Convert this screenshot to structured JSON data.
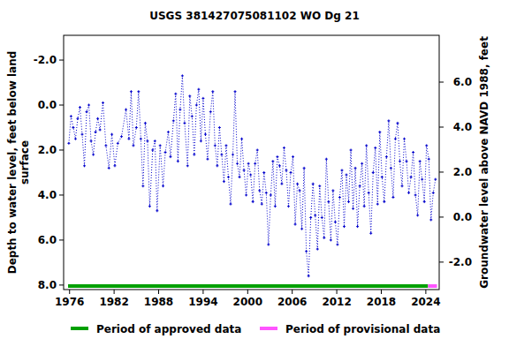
{
  "chart_data": {
    "type": "line",
    "title": "USGS 381427075081102 WO Dg  21",
    "ylabel": "Depth to water level, feet below land\nsurface",
    "y2label": "Groundwater level above NAVD 1988, feet",
    "xlim": [
      1975.2,
      2025.8
    ],
    "xticks": [
      1976,
      1982,
      1988,
      1994,
      2000,
      2006,
      2012,
      2018,
      2024
    ],
    "ylim": [
      8.2,
      -3.1
    ],
    "yticks": [
      {
        "value": -2,
        "label": "-2.0"
      },
      {
        "value": 0,
        "label": "0.0"
      },
      {
        "value": 2,
        "label": "2.0"
      },
      {
        "value": 4,
        "label": "4.0"
      },
      {
        "value": 6,
        "label": "6.0"
      },
      {
        "value": 8,
        "label": "8.0"
      }
    ],
    "y2lim": [
      -3.22,
      8.08
    ],
    "y2ticks": [
      {
        "value": 6,
        "label": "6.0"
      },
      {
        "value": 4,
        "label": "4.0"
      },
      {
        "value": 2,
        "label": "2.0"
      },
      {
        "value": 0,
        "label": "0.0"
      },
      {
        "value": -2,
        "label": "-2.0"
      }
    ],
    "grid": false,
    "series": [
      {
        "name": "Depth to water level",
        "color": "#0000cc",
        "marker": "plus",
        "line_style": "dotted",
        "x": [
          1975.9,
          1976.2,
          1976.5,
          1976.8,
          1977.1,
          1977.4,
          1977.7,
          1978.0,
          1978.3,
          1978.6,
          1978.9,
          1979.2,
          1979.5,
          1979.8,
          1980.1,
          1980.5,
          1980.9,
          1981.3,
          1981.7,
          1982.1,
          1982.5,
          1983.0,
          1983.6,
          1984.0,
          1984.3,
          1984.6,
          1985.0,
          1985.3,
          1985.6,
          1985.9,
          1986.2,
          1986.5,
          1986.8,
          1987.2,
          1987.5,
          1987.8,
          1988.2,
          1988.6,
          1988.9,
          1989.3,
          1989.6,
          1990.0,
          1990.3,
          1990.6,
          1990.9,
          1991.2,
          1991.5,
          1991.9,
          1992.2,
          1992.5,
          1992.8,
          1993.1,
          1993.4,
          1993.7,
          1994.0,
          1994.3,
          1994.6,
          1995.0,
          1995.3,
          1995.6,
          1995.9,
          1996.2,
          1996.5,
          1996.8,
          1997.1,
          1997.4,
          1997.7,
          1998.0,
          1998.3,
          1998.6,
          1998.9,
          1999.2,
          1999.5,
          1999.8,
          2000.1,
          2000.4,
          2000.7,
          2001.0,
          2001.3,
          2001.6,
          2001.9,
          2002.2,
          2002.5,
          2002.8,
          2003.1,
          2003.4,
          2003.7,
          2004.0,
          2004.3,
          2004.6,
          2004.9,
          2005.2,
          2005.5,
          2005.8,
          2006.1,
          2006.4,
          2006.7,
          2007.0,
          2007.3,
          2007.6,
          2007.9,
          2008.2,
          2008.5,
          2008.8,
          2009.1,
          2009.4,
          2009.7,
          2010.0,
          2010.3,
          2010.6,
          2010.9,
          2011.2,
          2011.5,
          2011.8,
          2012.1,
          2012.4,
          2012.7,
          2013.0,
          2013.3,
          2013.6,
          2013.9,
          2014.2,
          2014.5,
          2014.8,
          2015.1,
          2015.4,
          2015.7,
          2016.0,
          2016.3,
          2016.6,
          2016.9,
          2017.2,
          2017.5,
          2017.8,
          2018.1,
          2018.4,
          2018.7,
          2019.0,
          2019.3,
          2019.6,
          2019.9,
          2020.2,
          2020.5,
          2020.8,
          2021.1,
          2021.4,
          2021.7,
          2022.0,
          2022.3,
          2022.6,
          2022.9,
          2023.2,
          2023.5,
          2023.8,
          2024.1,
          2024.4,
          2024.7,
          2025.0,
          2025.3
        ],
        "values": [
          1.7,
          0.5,
          1.0,
          1.5,
          0.6,
          0.1,
          1.3,
          2.7,
          0.3,
          0.0,
          1.6,
          2.2,
          1.2,
          0.6,
          1.1,
          -0.1,
          1.8,
          2.8,
          1.3,
          2.7,
          1.7,
          1.4,
          0.2,
          1.5,
          -0.6,
          1.8,
          1.0,
          -0.6,
          1.5,
          3.6,
          0.8,
          1.6,
          4.5,
          2.0,
          1.6,
          4.7,
          1.8,
          3.6,
          2.1,
          1.2,
          2.3,
          0.7,
          -0.5,
          2.5,
          0.2,
          -1.3,
          0.8,
          2.7,
          -0.4,
          0.5,
          2.2,
          0.0,
          -0.7,
          1.6,
          -0.3,
          1.3,
          2.4,
          0.3,
          -0.6,
          1.8,
          2.7,
          1.0,
          2.2,
          3.4,
          1.8,
          3.2,
          4.4,
          2.2,
          -0.6,
          2.6,
          3.2,
          1.5,
          2.9,
          4.0,
          2.6,
          3.1,
          4.3,
          2.6,
          2.0,
          3.8,
          4.4,
          3.0,
          3.9,
          6.2,
          4.0,
          2.5,
          4.5,
          2.3,
          2.7,
          3.5,
          1.9,
          2.9,
          4.5,
          3.0,
          2.3,
          5.3,
          3.5,
          3.8,
          5.5,
          2.8,
          6.5,
          7.6,
          5.0,
          3.5,
          4.9,
          6.4,
          3.6,
          5.0,
          5.9,
          2.4,
          4.3,
          6.0,
          3.8,
          5.2,
          6.2,
          4.1,
          2.9,
          5.4,
          3.1,
          4.3,
          2.0,
          4.6,
          2.8,
          5.4,
          3.6,
          2.6,
          4.5,
          1.8,
          3.9,
          5.7,
          3.0,
          1.9,
          4.4,
          1.2,
          3.2,
          4.3,
          2.3,
          0.7,
          2.8,
          4.1,
          1.5,
          0.8,
          2.5,
          3.6,
          1.5,
          2.5,
          3.9,
          3.2,
          2.1,
          4.0,
          4.9,
          2.5,
          3.3,
          4.3,
          1.8,
          2.4,
          5.1,
          3.9,
          3.3
        ]
      }
    ],
    "periods": [
      {
        "name": "Period of approved data",
        "color": "#00a000",
        "start": 1975.8,
        "end": 2024.3
      },
      {
        "name": "Period of provisional data",
        "color": "#ff55ff",
        "start": 2024.3,
        "end": 2025.5
      }
    ]
  }
}
